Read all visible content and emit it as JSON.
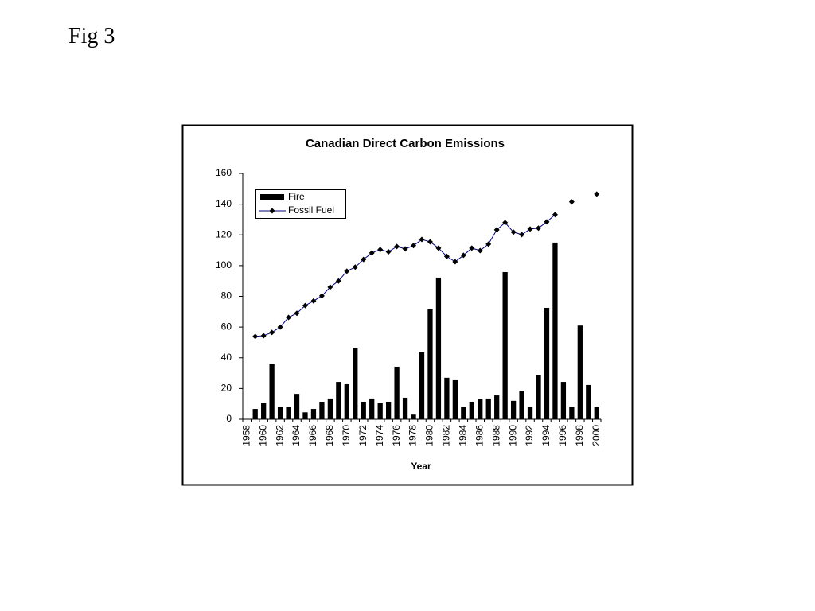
{
  "header": {
    "title": "Fig 3"
  },
  "chart_data": {
    "type": "bar-line",
    "title": "Canadian Direct Carbon Emissions",
    "x_label": "Year",
    "categories": [
      "1958",
      null,
      "1960",
      null,
      "1962",
      null,
      "1964",
      null,
      "1966",
      null,
      "1968",
      null,
      "1970",
      null,
      "1972",
      null,
      "1974",
      null,
      "1976",
      null,
      "1978",
      null,
      "1980",
      null,
      "1982",
      null,
      "1984",
      null,
      "1986",
      null,
      "1988",
      null,
      "1990",
      null,
      "1992",
      null,
      "1994",
      null,
      "1996",
      null,
      "1998",
      null,
      "2000"
    ],
    "series": [
      {
        "name": "Fire",
        "type": "bar",
        "color": "#000000",
        "values": [
          null,
          6.7,
          10.4,
          36,
          7.8,
          7.8,
          16.5,
          4.5,
          6.7,
          11.4,
          13.5,
          24.3,
          22.8,
          46.6,
          11.4,
          13.5,
          10.4,
          11.4,
          34.2,
          14,
          3,
          43.5,
          71.5,
          92.2,
          27,
          25.4,
          7.8,
          11.4,
          13,
          13.5,
          15.5,
          95.8,
          12,
          18.6,
          7.8,
          29,
          72.5,
          115,
          24.3,
          8.3,
          61,
          22.3,
          8.3
        ]
      },
      {
        "name": "Fossil Fuel",
        "type": "line",
        "color": "#000080",
        "marker_color": "#000000",
        "values": [
          null,
          53.9,
          54.4,
          56.5,
          60,
          66.3,
          69,
          74,
          77,
          80.3,
          86,
          90,
          96.4,
          99,
          104,
          108.3,
          110.4,
          109,
          112.4,
          110.9,
          113,
          117,
          115.5,
          111.4,
          106,
          102.5,
          106.7,
          111.4,
          109.8,
          114,
          123.3,
          128,
          121.8,
          120.2,
          123.8,
          124.4,
          128.5,
          133.2,
          null,
          141.5,
          null,
          null,
          146.6
        ]
      }
    ],
    "ylim": [
      0,
      160
    ],
    "yticks": [
      0,
      20,
      40,
      60,
      80,
      100,
      120,
      140,
      160
    ],
    "legend": "upper left",
    "grid": false
  }
}
